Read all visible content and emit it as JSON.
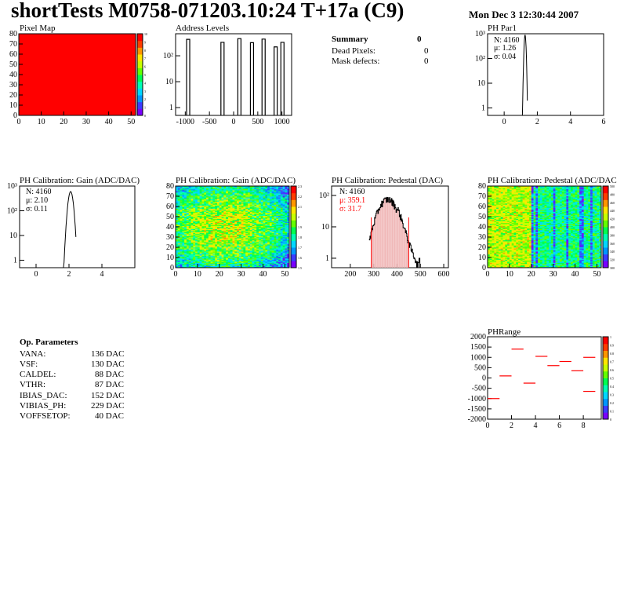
{
  "header": {
    "title": "shortTests M0758-071203.10:24 T+17a (C9)",
    "date": "Mon Dec  3 12:30:44 2007"
  },
  "summary": {
    "title": "Summary",
    "total": "0",
    "rows": [
      {
        "label": "Dead Pixels:",
        "value": "0"
      },
      {
        "label": "Mask defects:",
        "value": "0"
      }
    ]
  },
  "op_params": {
    "title": "Op. Parameters",
    "rows": [
      {
        "label": "VANA:",
        "value": "136 DAC"
      },
      {
        "label": "VSF:",
        "value": "130 DAC"
      },
      {
        "label": "CALDEL:",
        "value": "88 DAC"
      },
      {
        "label": "VTHR:",
        "value": "87 DAC"
      },
      {
        "label": "IBIAS_DAC:",
        "value": "152 DAC"
      },
      {
        "label": "VIBIAS_PH:",
        "value": "229 DAC"
      },
      {
        "label": "VOFFSETOP:",
        "value": "40 DAC"
      }
    ]
  },
  "colors": {
    "red": "#ff0000",
    "hist_fill": "#f0b8b8"
  },
  "chart_data": [
    {
      "id": "pixel-map",
      "type": "heatmap",
      "title": "Pixel Map",
      "x_ticks": [
        "0",
        "10",
        "20",
        "30",
        "40",
        "50"
      ],
      "y_ticks": [
        "0",
        "10",
        "20",
        "30",
        "40",
        "50",
        "60",
        "70",
        "80"
      ],
      "xlim": [
        0,
        52
      ],
      "ylim": [
        0,
        80
      ],
      "uniform_value": 10,
      "palette_ticks": [
        "0",
        "1",
        "2",
        "3",
        "4",
        "5",
        "6",
        "7",
        "8",
        "9",
        "10"
      ]
    },
    {
      "id": "address-levels",
      "type": "bar",
      "title": "Address Levels",
      "log_y": true,
      "xlim": [
        -1200,
        1200
      ],
      "x_ticks": [
        "-1000",
        "-500",
        "0",
        "500",
        "1000"
      ],
      "y_ticks": [
        "1",
        "10",
        "10²"
      ],
      "peaks": [
        {
          "x": -940,
          "y": 430
        },
        {
          "x": -230,
          "y": 330
        },
        {
          "x": 120,
          "y": 460
        },
        {
          "x": 380,
          "y": 320
        },
        {
          "x": 620,
          "y": 440
        },
        {
          "x": 870,
          "y": 220
        },
        {
          "x": 1010,
          "y": 330
        }
      ]
    },
    {
      "id": "ph-par1",
      "type": "bar",
      "title": "PH Par1",
      "log_y": true,
      "xlim": [
        -1,
        6
      ],
      "x_ticks": [
        "0",
        "2",
        "4",
        "6"
      ],
      "y_ticks": [
        "1",
        "10",
        "10²",
        "10³"
      ],
      "stats": {
        "N": "4160",
        "mu": "1.26",
        "sigma": "0.04"
      },
      "stat_labels": {
        "N": "N: 4160",
        "mu": "μ: 1.26",
        "sigma": "σ: 0.04"
      },
      "mean": 1.26,
      "std": 0.04,
      "peak": 900
    },
    {
      "id": "ph-gain",
      "type": "bar",
      "title": "PH Calibration: Gain (ADC/DAC)",
      "log_y": true,
      "xlim": [
        -1,
        6
      ],
      "x_ticks": [
        "0",
        "2",
        "4"
      ],
      "y_ticks": [
        "1",
        "10",
        "10²",
        "10³"
      ],
      "stat_labels": {
        "N": "N: 4160",
        "mu": "μ: 2.10",
        "sigma": "σ: 0.11"
      },
      "mean": 2.1,
      "std": 0.11,
      "peak": 600
    },
    {
      "id": "ph-gain-map",
      "type": "heatmap",
      "title": "PH Calibration: Gain (ADC/DAC)",
      "xlim": [
        0,
        52
      ],
      "ylim": [
        0,
        80
      ],
      "x_ticks": [
        "0",
        "10",
        "20",
        "30",
        "40",
        "50"
      ],
      "y_ticks": [
        "0",
        "10",
        "20",
        "30",
        "40",
        "50",
        "60",
        "70",
        "80"
      ],
      "palette_ticks": [
        "1.5",
        "1.6",
        "1.7",
        "1.8",
        "1.9",
        "2",
        "2.1",
        "2.2",
        "2.3"
      ]
    },
    {
      "id": "ph-pedestal",
      "type": "bar",
      "title": "PH Calibration: Pedestal (DAC)",
      "log_y": true,
      "xlim": [
        120,
        620
      ],
      "x_ticks": [
        "200",
        "300",
        "400",
        "500",
        "600"
      ],
      "y_ticks": [
        "1",
        "10",
        "10²"
      ],
      "stat_labels": {
        "N": "N: 4160",
        "mu": "μ: 359.1",
        "sigma": "σ: 31.7"
      },
      "mean": 359.1,
      "std": 31.7,
      "peak": 75,
      "cut_lines": [
        290,
        450
      ]
    },
    {
      "id": "ph-pedestal-map",
      "type": "heatmap",
      "title": "PH Calibration: Pedestal (ADC/DAC",
      "xlim": [
        0,
        52
      ],
      "ylim": [
        0,
        80
      ],
      "x_ticks": [
        "0",
        "10",
        "20",
        "30",
        "40",
        "50"
      ],
      "y_ticks": [
        "0",
        "10",
        "20",
        "30",
        "40",
        "50",
        "60",
        "70",
        "80"
      ],
      "palette_ticks": [
        "300",
        "320",
        "340",
        "360",
        "380",
        "400",
        "420",
        "440",
        "460",
        "480",
        "500"
      ]
    },
    {
      "id": "ph-range",
      "type": "scatter",
      "title": "PHRange",
      "xlim": [
        0,
        9.5
      ],
      "ylim": [
        -2000,
        2000
      ],
      "x_ticks": [
        "0",
        "2",
        "4",
        "6",
        "8"
      ],
      "y_ticks": [
        "-2000",
        "-1500",
        "-1000",
        "-500",
        "0",
        "500",
        "1000",
        "1500",
        "2000"
      ],
      "palette_ticks": [
        "0",
        "0.1",
        "0.2",
        "0.3",
        "0.4",
        "0.5",
        "0.6",
        "0.7",
        "0.8",
        "0.9",
        "1"
      ],
      "segments": [
        {
          "x": 0.5,
          "y": -1000
        },
        {
          "x": 1.5,
          "y": 100
        },
        {
          "x": 2.5,
          "y": 1400
        },
        {
          "x": 3.5,
          "y": -250
        },
        {
          "x": 4.5,
          "y": 1050
        },
        {
          "x": 5.5,
          "y": 600
        },
        {
          "x": 6.5,
          "y": 800
        },
        {
          "x": 7.5,
          "y": 350
        },
        {
          "x": 8.5,
          "y": 1000
        },
        {
          "x": 8.5,
          "y": -650
        }
      ]
    }
  ]
}
